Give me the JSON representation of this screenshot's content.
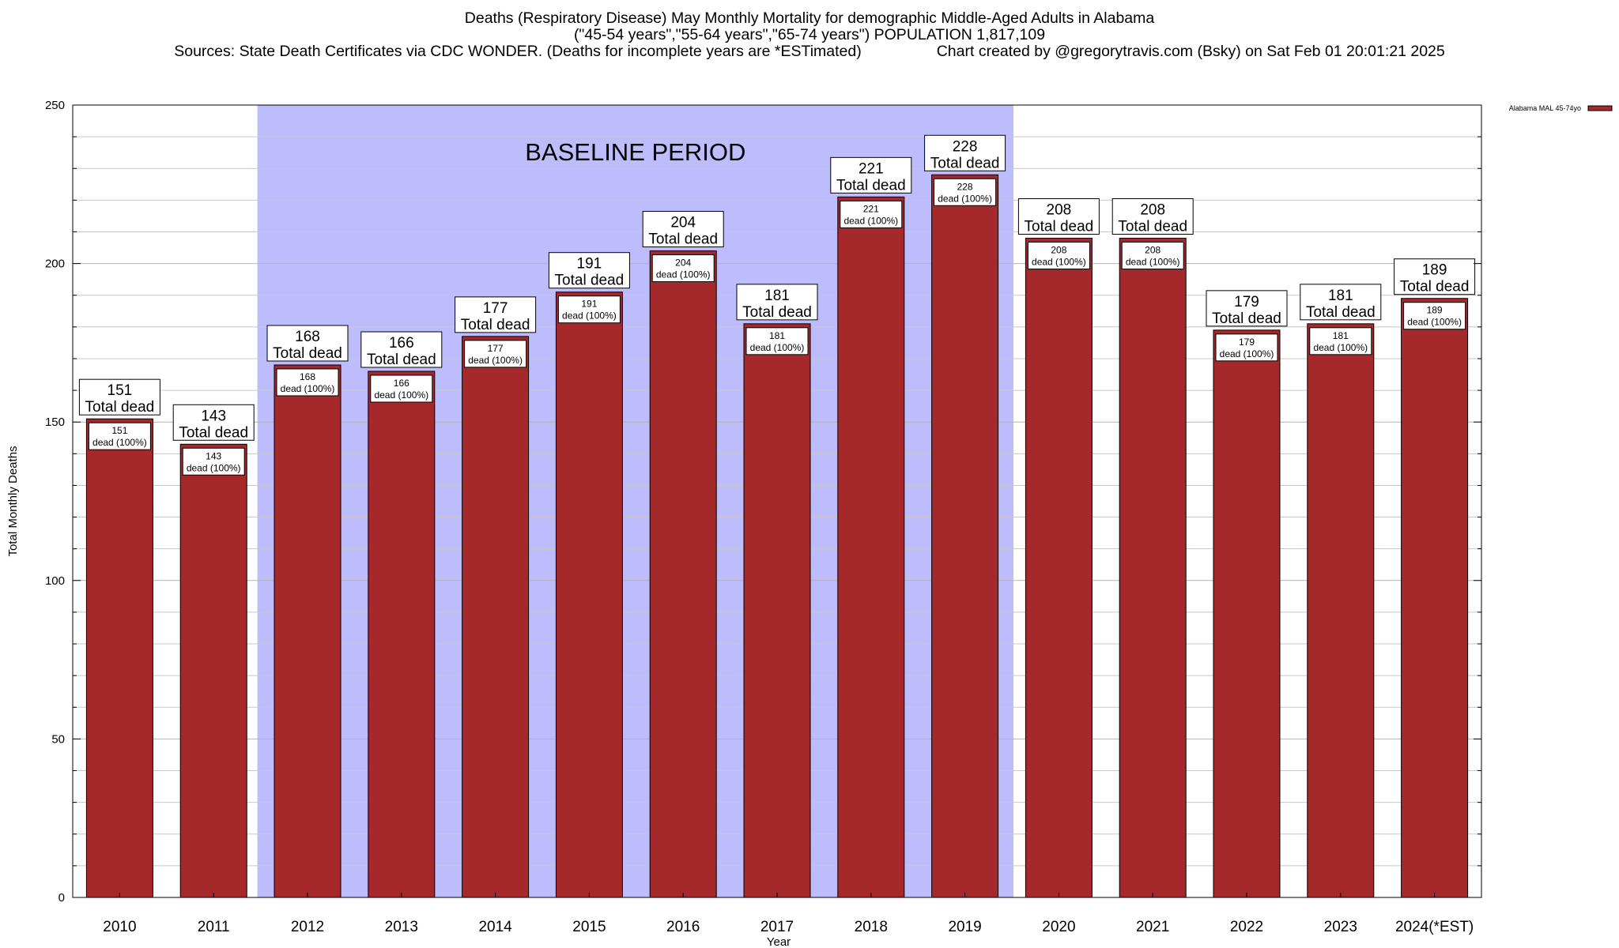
{
  "header": {
    "title": "Deaths (Respiratory Disease) May Monthly Mortality for demographic Middle-Aged Adults in Alabama",
    "subtitle": "(\"45-54 years\",\"55-64 years\",\"65-74 years\") POPULATION 1,817,109",
    "sources": "Sources: State Death Certificates via CDC WONDER. (Deaths for incomplete years are *ESTimated)",
    "credit": "Chart created by @gregorytravis.com (Bsky) on Sat Feb 01 20:01:21 2025"
  },
  "colors": {
    "bar": "#a5292a",
    "baseline_band": "#bdbdfd",
    "grid": "#c8c8c8"
  },
  "chart_data": {
    "type": "bar",
    "title": "Deaths (Respiratory Disease) May Monthly Mortality for demographic Middle-Aged Adults in Alabama",
    "xlabel": "Year",
    "ylabel": "Total Monthly Deaths",
    "ylim": [
      0,
      250
    ],
    "yticks": [
      0,
      50,
      100,
      150,
      200,
      250
    ],
    "minor_step": 10,
    "grid": true,
    "legend": {
      "placement": "top-right",
      "entries": [
        "Alabama MAL 45-74yo"
      ]
    },
    "categories": [
      "2010",
      "2011",
      "2012",
      "2013",
      "2014",
      "2015",
      "2016",
      "2017",
      "2018",
      "2019",
      "2020",
      "2021",
      "2022",
      "2023",
      "2024(*EST)"
    ],
    "series": [
      {
        "name": "Alabama MAL 45-74yo",
        "values": [
          151,
          143,
          168,
          166,
          177,
          191,
          204,
          181,
          221,
          228,
          208,
          208,
          179,
          181,
          189
        ]
      }
    ],
    "total_label": "Total dead",
    "inner_label_suffix": "dead (100%)",
    "baseline": {
      "label": "BASELINE PERIOD",
      "from": "2012",
      "to": "2019"
    }
  }
}
